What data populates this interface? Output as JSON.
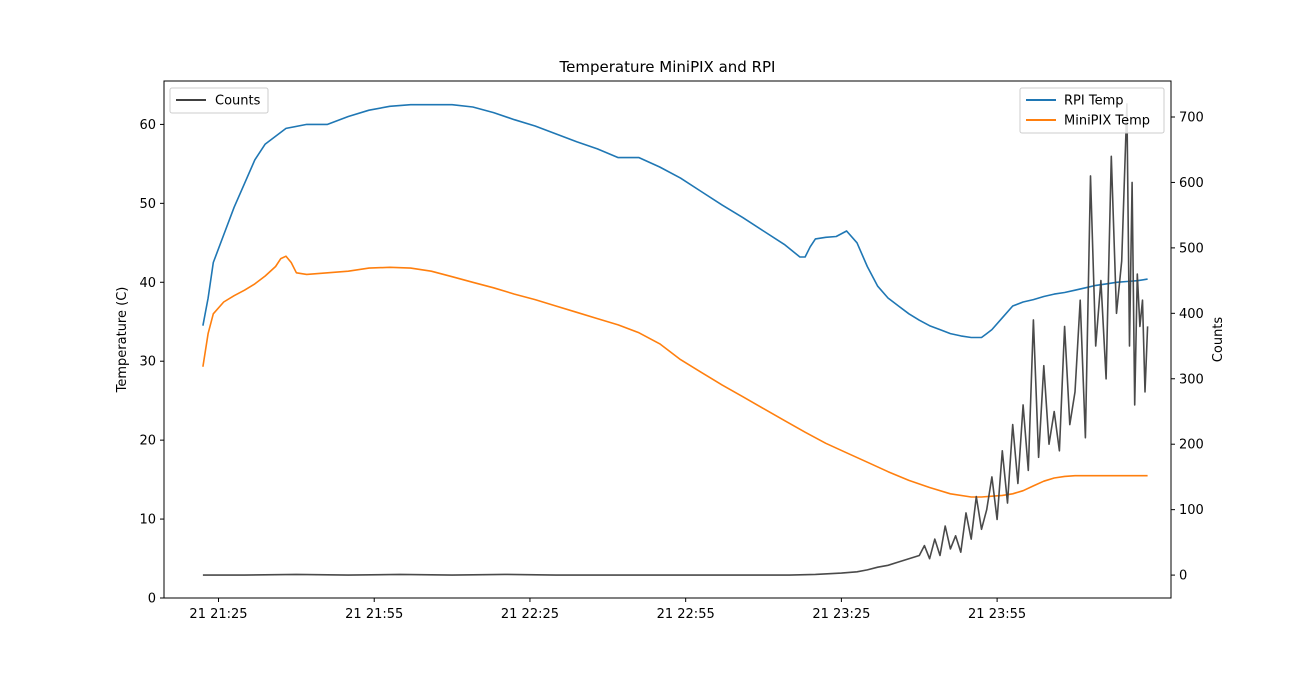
{
  "chart_data": {
    "type": "line",
    "title": "Temperature MiniPIX and RPI",
    "ylabel": "Temperature (C)",
    "y2label": "Counts",
    "x_ticks": [
      "21 21:25",
      "21 21:55",
      "21 22:25",
      "21 22:55",
      "21 23:25",
      "21 23:55"
    ],
    "x_tick_minutes": [
      85,
      115,
      145,
      175,
      205,
      235
    ],
    "xlim_minutes": [
      74.5,
      268.5
    ],
    "ylim": [
      0,
      65.5
    ],
    "y_ticks": [
      0,
      10,
      20,
      30,
      40,
      50,
      60
    ],
    "y2lim": [
      -35,
      755
    ],
    "y2_ticks": [
      0,
      100,
      200,
      300,
      400,
      500,
      600,
      700
    ],
    "grid": false,
    "legends": [
      {
        "placement": "upper-left",
        "entries": [
          "Counts"
        ]
      },
      {
        "placement": "upper-right",
        "entries": [
          "RPI Temp",
          "MiniPIX Temp"
        ]
      }
    ],
    "series": [
      {
        "name": "RPI Temp",
        "axis": "left",
        "color": "#1f77b4",
        "x": [
          82,
          83,
          84,
          86,
          88,
          90,
          92,
          94,
          98,
          102,
          106,
          110,
          114,
          118,
          122,
          126,
          130,
          134,
          138,
          142,
          146,
          150,
          154,
          158,
          162,
          166,
          170,
          174,
          178,
          182,
          186,
          190,
          194,
          197,
          198,
          199,
          200,
          202,
          204,
          206,
          208,
          210,
          212,
          214,
          216,
          218,
          220,
          222,
          224,
          226,
          228,
          230,
          232,
          233,
          234,
          236,
          238,
          240,
          242,
          244,
          246,
          248,
          250,
          252,
          254,
          256,
          258,
          260,
          262,
          264
        ],
        "y": [
          34.5,
          38,
          42.5,
          46,
          49.5,
          52.5,
          55.5,
          57.5,
          59.5,
          60,
          60,
          61,
          61.8,
          62.3,
          62.5,
          62.5,
          62.5,
          62.2,
          61.5,
          60.6,
          59.8,
          58.8,
          57.8,
          56.9,
          55.8,
          55.8,
          54.6,
          53.2,
          51.5,
          49.8,
          48.2,
          46.5,
          44.8,
          43.2,
          43.2,
          44.5,
          45.5,
          45.7,
          45.8,
          46.5,
          45,
          42,
          39.5,
          38,
          37,
          36,
          35.2,
          34.5,
          34,
          33.5,
          33.2,
          33,
          33,
          33.5,
          34,
          35.5,
          37,
          37.5,
          37.8,
          38.2,
          38.5,
          38.7,
          39,
          39.3,
          39.6,
          39.8,
          40,
          40.1,
          40.2,
          40.4
        ]
      },
      {
        "name": "MiniPIX Temp",
        "axis": "left",
        "color": "#ff7f0e",
        "x": [
          82,
          83,
          84,
          86,
          88,
          90,
          92,
          94,
          96,
          97,
          98,
          99,
          100,
          102,
          106,
          110,
          114,
          118,
          122,
          126,
          130,
          134,
          138,
          142,
          146,
          150,
          154,
          158,
          162,
          166,
          170,
          174,
          178,
          182,
          186,
          190,
          194,
          198,
          202,
          206,
          210,
          214,
          218,
          222,
          226,
          230,
          232,
          234,
          236,
          238,
          240,
          242,
          244,
          246,
          248,
          250,
          252,
          254,
          256,
          258,
          260,
          262,
          264
        ],
        "y": [
          29.3,
          33.5,
          36,
          37.5,
          38.3,
          39,
          39.8,
          40.8,
          42,
          43,
          43.3,
          42.5,
          41.2,
          41,
          41.2,
          41.4,
          41.8,
          41.9,
          41.8,
          41.4,
          40.7,
          40,
          39.3,
          38.5,
          37.8,
          37,
          36.2,
          35.4,
          34.6,
          33.6,
          32.2,
          30.2,
          28.6,
          27,
          25.5,
          24,
          22.5,
          21,
          19.6,
          18.4,
          17.2,
          16,
          14.9,
          14,
          13.2,
          12.8,
          12.8,
          12.9,
          13,
          13.2,
          13.6,
          14.2,
          14.8,
          15.2,
          15.4,
          15.5,
          15.5,
          15.5,
          15.5,
          15.5,
          15.5,
          15.5,
          15.5
        ]
      },
      {
        "name": "Counts",
        "axis": "right",
        "color": "#404040",
        "x": [
          82,
          90,
          100,
          110,
          120,
          130,
          140,
          150,
          160,
          170,
          180,
          190,
          195,
          200,
          205,
          208,
          210,
          212,
          214,
          216,
          218,
          220,
          221,
          222,
          223,
          224,
          225,
          226,
          227,
          228,
          229,
          230,
          231,
          232,
          233,
          234,
          235,
          236,
          237,
          238,
          239,
          240,
          241,
          242,
          243,
          244,
          245,
          246,
          247,
          248,
          249,
          250,
          251,
          252,
          253,
          254,
          255,
          256,
          257,
          258,
          259,
          260,
          260.5,
          261,
          261.5,
          262,
          262.5,
          263,
          263.5,
          264
        ],
        "y": [
          0,
          0,
          1,
          0,
          1,
          0,
          1,
          0,
          0,
          0,
          0,
          0,
          0,
          1,
          3,
          5,
          8,
          12,
          15,
          20,
          25,
          30,
          45,
          25,
          55,
          30,
          75,
          40,
          60,
          35,
          95,
          55,
          120,
          70,
          100,
          150,
          85,
          190,
          110,
          230,
          140,
          260,
          160,
          390,
          180,
          320,
          200,
          250,
          190,
          380,
          230,
          280,
          420,
          210,
          610,
          350,
          450,
          300,
          640,
          400,
          480,
          720,
          350,
          600,
          260,
          460,
          380,
          420,
          280,
          380
        ]
      }
    ]
  }
}
